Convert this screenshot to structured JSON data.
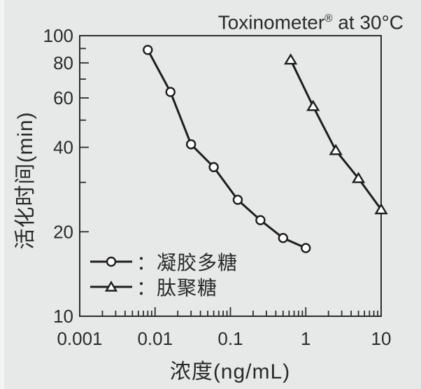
{
  "header": {
    "title_main": "Toxinometer",
    "title_sup": "®",
    "title_rest": " at 30°C"
  },
  "chart_data": {
    "type": "line",
    "title": "Toxinometer® at 30°C",
    "xlabel": "浓度(ng/mL)",
    "ylabel": "活化时间(min)",
    "x_scale": "log",
    "y_scale": "log",
    "xlim": [
      0.001,
      10
    ],
    "ylim": [
      10,
      100
    ],
    "grid": false,
    "legend_position": "inside-lower-left",
    "x_major_ticks": [
      {
        "v": 0.001,
        "label": "0.001"
      },
      {
        "v": 0.01,
        "label": "0.01"
      },
      {
        "v": 0.1,
        "label": "0.1"
      },
      {
        "v": 1,
        "label": "1"
      },
      {
        "v": 10,
        "label": "10"
      }
    ],
    "y_major_ticks": [
      {
        "v": 100,
        "label": "100"
      },
      {
        "v": 80,
        "label": "80"
      },
      {
        "v": 60,
        "label": "60"
      },
      {
        "v": 40,
        "label": "40"
      },
      {
        "v": 20,
        "label": "20"
      },
      {
        "v": 10,
        "label": "10"
      }
    ],
    "y_minor_ticks": [
      90,
      70,
      50,
      30
    ],
    "series": [
      {
        "key": "curdlan",
        "name": "凝胶多糖",
        "legend_label": "：凝胶多糖",
        "marker": "circle",
        "x": [
          0.008,
          0.016,
          0.03,
          0.06,
          0.125,
          0.25,
          0.5,
          1.0
        ],
        "y": [
          89,
          63,
          41,
          34,
          26,
          22,
          19,
          17.5
        ]
      },
      {
        "key": "peptidoglycan",
        "name": "肽聚糖",
        "legend_label": "：肽聚糖",
        "marker": "triangle",
        "x": [
          0.63,
          1.25,
          2.5,
          5,
          10
        ],
        "y": [
          82,
          56,
          39,
          31,
          24
        ]
      }
    ],
    "colors": {
      "background": "#e7e8e8",
      "line": "#1d1d1d",
      "marker_fill": "#ffffff",
      "text": "#2b2b2b"
    }
  }
}
